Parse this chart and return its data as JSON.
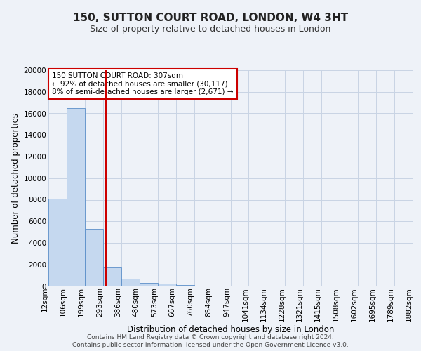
{
  "title_line1": "150, SUTTON COURT ROAD, LONDON, W4 3HT",
  "title_line2": "Size of property relative to detached houses in London",
  "xlabel": "Distribution of detached houses by size in London",
  "ylabel": "Number of detached properties",
  "bar_heights": [
    8100,
    16500,
    5300,
    1750,
    700,
    300,
    200,
    100,
    50,
    0,
    0,
    0,
    0,
    0,
    0,
    0,
    0,
    0,
    0,
    0
  ],
  "bin_labels": [
    "12sqm",
    "106sqm",
    "199sqm",
    "293sqm",
    "386sqm",
    "480sqm",
    "573sqm",
    "667sqm",
    "760sqm",
    "854sqm",
    "947sqm",
    "1041sqm",
    "1134sqm",
    "1228sqm",
    "1321sqm",
    "1415sqm",
    "1508sqm",
    "1602sqm",
    "1695sqm",
    "1789sqm",
    "1882sqm"
  ],
  "bar_color": "#c5d8ef",
  "bar_edge_color": "#5b8fc9",
  "grid_color": "#c8d4e4",
  "background_color": "#eef2f8",
  "vline_color": "#cc0000",
  "annotation_text": "150 SUTTON COURT ROAD: 307sqm\n← 92% of detached houses are smaller (30,117)\n8% of semi-detached houses are larger (2,671) →",
  "annotation_box_color": "#ffffff",
  "annotation_box_edge": "#cc0000",
  "ylim": [
    0,
    20000
  ],
  "yticks": [
    0,
    2000,
    4000,
    6000,
    8000,
    10000,
    12000,
    14000,
    16000,
    18000,
    20000
  ],
  "footer_line1": "Contains HM Land Registry data © Crown copyright and database right 2024.",
  "footer_line2": "Contains public sector information licensed under the Open Government Licence v3.0.",
  "title_fontsize": 11,
  "subtitle_fontsize": 9,
  "axis_label_fontsize": 8.5,
  "tick_fontsize": 7.5,
  "annotation_fontsize": 7.5,
  "footer_fontsize": 6.5
}
